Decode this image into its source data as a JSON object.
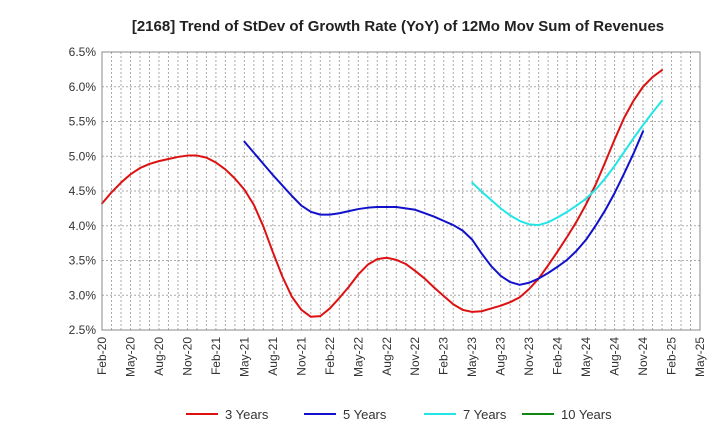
{
  "chart_data": {
    "type": "line",
    "title": "[2168]  Trend of StDev of Growth Rate (YoY) of 12Mo Mov Sum of Revenues",
    "xlabel": "",
    "ylabel": "",
    "ylim": [
      2.5,
      6.5
    ],
    "y_ticks": [
      "2.5%",
      "3.0%",
      "3.5%",
      "4.0%",
      "4.5%",
      "5.0%",
      "5.5%",
      "6.0%",
      "6.5%"
    ],
    "x_ticks": [
      "Feb-20",
      "May-20",
      "Aug-20",
      "Nov-20",
      "Feb-21",
      "May-21",
      "Aug-21",
      "Nov-21",
      "Feb-22",
      "May-22",
      "Aug-22",
      "Nov-22",
      "Feb-23",
      "May-23",
      "Aug-23",
      "Nov-23",
      "Feb-24",
      "May-24",
      "Aug-24",
      "Nov-24",
      "Feb-25",
      "May-25"
    ],
    "grid": true,
    "legend_position": "bottom",
    "series": [
      {
        "name": "3 Years",
        "color": "#dd1111",
        "start_index": 0,
        "values": [
          4.32,
          4.48,
          4.62,
          4.74,
          4.83,
          4.89,
          4.93,
          4.96,
          4.99,
          5.01,
          5.01,
          4.98,
          4.91,
          4.81,
          4.68,
          4.52,
          4.3,
          3.99,
          3.62,
          3.27,
          2.98,
          2.79,
          2.69,
          2.7,
          2.81,
          2.96,
          3.12,
          3.3,
          3.44,
          3.52,
          3.54,
          3.51,
          3.45,
          3.35,
          3.24,
          3.11,
          2.99,
          2.87,
          2.79,
          2.76,
          2.77,
          2.81,
          2.85,
          2.9,
          2.97,
          3.09,
          3.24,
          3.43,
          3.63,
          3.84,
          4.06,
          4.31,
          4.59,
          4.91,
          5.24,
          5.55,
          5.8,
          6.0,
          6.14,
          6.24
        ]
      },
      {
        "name": "5 Years",
        "color": "#1111cc",
        "start_index": 15,
        "values": [
          5.21,
          5.05,
          4.89,
          4.73,
          4.58,
          4.43,
          4.29,
          4.2,
          4.16,
          4.16,
          4.18,
          4.21,
          4.24,
          4.26,
          4.27,
          4.27,
          4.27,
          4.25,
          4.23,
          4.18,
          4.13,
          4.07,
          4.01,
          3.93,
          3.8,
          3.6,
          3.42,
          3.28,
          3.19,
          3.15,
          3.18,
          3.24,
          3.32,
          3.41,
          3.51,
          3.64,
          3.8,
          4.0,
          4.22,
          4.47,
          4.75,
          5.04,
          5.36
        ]
      },
      {
        "name": "7 Years",
        "color": "#22e5e5",
        "start_index": 39,
        "values": [
          4.62,
          4.49,
          4.37,
          4.25,
          4.15,
          4.07,
          4.02,
          4.01,
          4.05,
          4.12,
          4.2,
          4.29,
          4.39,
          4.52,
          4.68,
          4.86,
          5.06,
          5.26,
          5.45,
          5.63,
          5.8
        ]
      },
      {
        "name": "10 Years",
        "color": "#118811",
        "start_index": 0,
        "values": []
      }
    ]
  }
}
